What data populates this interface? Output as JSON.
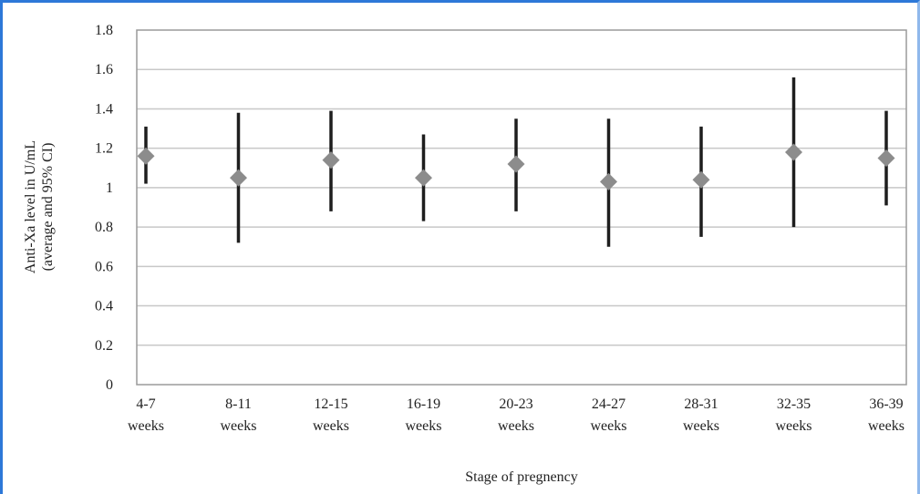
{
  "chart_data": {
    "type": "scatter",
    "subtype": "mean-with-95ci-error-bars",
    "categories": [
      [
        "4-7",
        "weeks"
      ],
      [
        "8-11",
        "weeks"
      ],
      [
        "12-15",
        "weeks"
      ],
      [
        "16-19",
        "weeks"
      ],
      [
        "20-23",
        "weeks"
      ],
      [
        "24-27",
        "weeks"
      ],
      [
        "28-31",
        "weeks"
      ],
      [
        "32-35",
        "weeks"
      ],
      [
        "36-39",
        "weeks"
      ]
    ],
    "series": [
      {
        "means": [
          1.16,
          1.05,
          1.14,
          1.05,
          1.12,
          1.03,
          1.04,
          1.18,
          1.15
        ],
        "ci_lower": [
          1.02,
          0.72,
          0.88,
          0.83,
          0.88,
          0.7,
          0.75,
          0.8,
          0.91
        ],
        "ci_upper": [
          1.31,
          1.38,
          1.39,
          1.27,
          1.35,
          1.35,
          1.31,
          1.56,
          1.39
        ]
      }
    ],
    "xlabel": "Stage of pregnency",
    "ylabel": [
      "Anti-Xa level in U/mL",
      "(average and 95% CI)"
    ],
    "ylim": [
      0,
      1.8
    ],
    "yticks": [
      0,
      0.2,
      0.4,
      0.6,
      0.8,
      1,
      1.2,
      1.4,
      1.6,
      1.8
    ],
    "grid": "horizontal",
    "legend": "none",
    "colors": {
      "marker": "#8c8c8c",
      "error_bar": "#1e1e1e",
      "grid": "#c8c8c8",
      "plot_border": "#9a9a9a",
      "frame": "#2d78d8"
    }
  }
}
